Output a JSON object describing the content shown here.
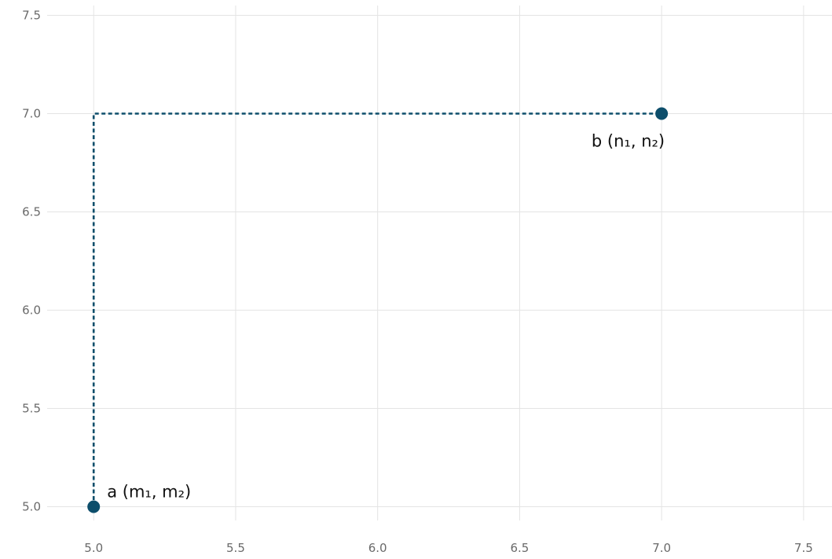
{
  "chart_data": {
    "type": "scatter",
    "title": "",
    "xlabel": "",
    "ylabel": "",
    "xlim": [
      4.85,
      7.6
    ],
    "ylim": [
      4.93,
      7.55
    ],
    "grid": true,
    "x_ticks": [
      "5.0",
      "5.5",
      "6.0",
      "6.5",
      "7.0",
      "7.5"
    ],
    "y_ticks": [
      "5.0",
      "5.5",
      "6.0",
      "6.5",
      "7.0",
      "7.5"
    ],
    "points": [
      {
        "x": 5.0,
        "y": 5.0,
        "label": "a (m₁, m₂)",
        "label_anchor": "upper-right"
      },
      {
        "x": 7.0,
        "y": 7.0,
        "label": "b (n₁, n₂)",
        "label_anchor": "lower-left"
      }
    ],
    "connector": {
      "style": "dashed",
      "path": [
        [
          5.0,
          5.0
        ],
        [
          5.0,
          7.0
        ],
        [
          7.0,
          7.0
        ]
      ]
    },
    "colors": {
      "series": "#0d4e6b",
      "grid": "#e4e4e4",
      "tick_text": "#6a6a6a"
    }
  }
}
